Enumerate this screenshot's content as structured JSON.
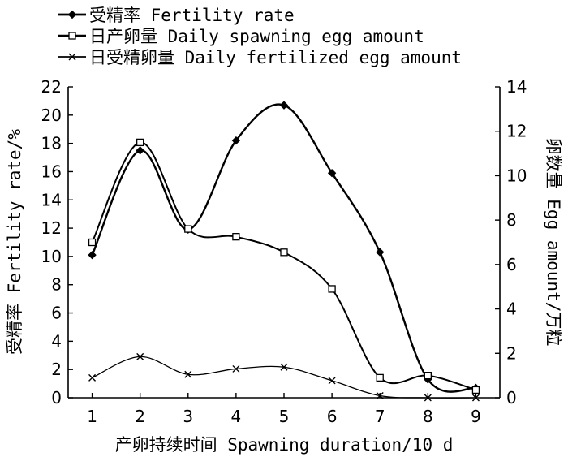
{
  "chart_data": {
    "type": "line",
    "categories": [
      "1",
      "2",
      "3",
      "4",
      "5",
      "6",
      "7",
      "8",
      "9"
    ],
    "x": [
      1,
      2,
      3,
      4,
      5,
      6,
      7,
      8,
      9
    ],
    "series": [
      {
        "name": "受精率 Fertility rate",
        "axis": "left",
        "marker": "filled-diamond",
        "values": [
          10.1,
          17.5,
          11.9,
          18.2,
          20.7,
          15.9,
          10.3,
          1.3,
          0.7
        ]
      },
      {
        "name": "日产卵量 Daily spawning egg amount",
        "axis": "right",
        "marker": "open-square",
        "values": [
          7.0,
          11.5,
          7.6,
          7.25,
          6.55,
          4.9,
          0.9,
          1.0,
          0.35
        ]
      },
      {
        "name": "日受精卵量 Daily fertilized egg amount",
        "axis": "right",
        "marker": "cross",
        "values": [
          0.9,
          1.85,
          1.05,
          1.3,
          1.38,
          0.77,
          0.09,
          0.0,
          0.0
        ]
      }
    ],
    "xlabel": "产卵持续时间 Spawning duration/10 d",
    "ylabel_left": "受精率 Fertility rate/%",
    "ylabel_right": "卵数量 Egg amount/万粒",
    "ylim_left": [
      0,
      22
    ],
    "yticks_left": [
      0,
      2,
      4,
      6,
      8,
      10,
      12,
      14,
      16,
      18,
      20,
      22
    ],
    "ylim_right": [
      0,
      14
    ],
    "yticks_right": [
      0,
      2,
      4,
      6,
      8,
      10,
      12,
      14
    ],
    "grid": false,
    "legend_position": "top-left"
  }
}
